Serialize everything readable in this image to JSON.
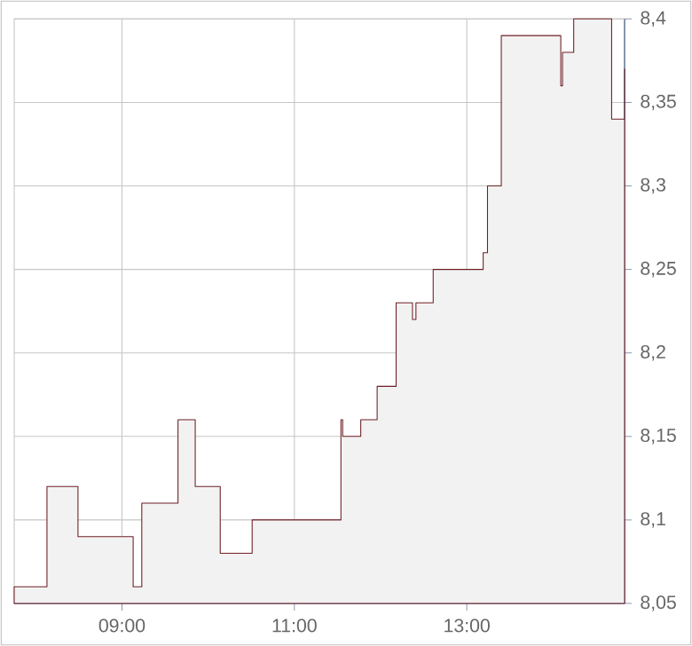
{
  "chart_data": {
    "type": "area",
    "color": "#6e1f24",
    "grid": true,
    "x": [
      7.75,
      8.13,
      8.49,
      9.13,
      9.23,
      9.65,
      9.85,
      10.14,
      10.51,
      11.54,
      11.56,
      11.77,
      11.96,
      12.18,
      12.37,
      12.41,
      12.61,
      13.19,
      13.24,
      13.4,
      14.09,
      14.11,
      14.24,
      14.68,
      14.83
    ],
    "values": [
      8.06,
      8.12,
      8.09,
      8.06,
      8.11,
      8.16,
      8.12,
      8.08,
      8.1,
      8.16,
      8.15,
      8.16,
      8.18,
      8.23,
      8.22,
      8.23,
      8.25,
      8.26,
      8.3,
      8.39,
      8.36,
      8.38,
      8.4,
      8.34,
      8.37
    ],
    "xlim": [
      7.75,
      14.83
    ],
    "xticks": [
      {
        "value": 9,
        "label": "09:00"
      },
      {
        "value": 11,
        "label": "11:00"
      },
      {
        "value": 13,
        "label": "13:00"
      }
    ],
    "ylim": [
      8.05,
      8.4
    ],
    "yticks": [
      {
        "value": 8.05,
        "label": "8,05"
      },
      {
        "value": 8.1,
        "label": "8,1"
      },
      {
        "value": 8.15,
        "label": "8,15"
      },
      {
        "value": 8.2,
        "label": "8,2"
      },
      {
        "value": 8.25,
        "label": "8,25"
      },
      {
        "value": 8.3,
        "label": "8,3"
      },
      {
        "value": 8.35,
        "label": "8,35"
      },
      {
        "value": 8.4,
        "label": "8,4"
      }
    ]
  }
}
